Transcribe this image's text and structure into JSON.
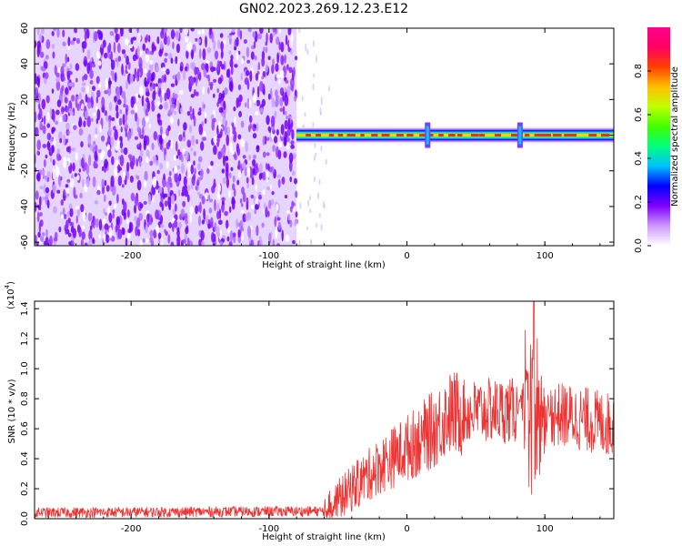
{
  "title": "GN02.2023.269.12.23.E12",
  "chart_data": [
    {
      "type": "heatmap",
      "xlabel": "Height of straight line (km)",
      "ylabel": "Frequency (Hz)",
      "xlim": [
        -270,
        150
      ],
      "ylim": [
        -62,
        60
      ],
      "xticks": [
        -200,
        -100,
        0,
        100
      ],
      "yticks": [
        60,
        40,
        20,
        0,
        -20,
        -40,
        -60
      ],
      "colorbar": {
        "label": "Normalized spectral amplitude",
        "range": [
          0,
          1
        ],
        "ticks": [
          "0.0",
          "0.2",
          "0.4",
          "0.6",
          "0.8"
        ],
        "colors": [
          "#ffffff",
          "#cc99ff",
          "#8000ff",
          "#0000ff",
          "#00c0ff",
          "#00ff80",
          "#40ff00",
          "#c0ff00",
          "#ffc000",
          "#ff4000",
          "#ff0060",
          "#ff0090"
        ]
      },
      "noise_region_x": [
        -270,
        -80
      ],
      "band_region_x": [
        -80,
        150
      ],
      "band_center_hz": 0,
      "spikes_x": [
        15,
        82
      ]
    },
    {
      "type": "line",
      "xlabel": "Height of straight line (km)",
      "ylabel": "SNR (10 * v/v)",
      "yscale_label": "(x10",
      "yscale_exp": "4",
      "yscale_close": ")",
      "xlim": [
        -270,
        150
      ],
      "ylim": [
        0,
        1.45
      ],
      "xticks": [
        -200,
        -100,
        0,
        100
      ],
      "yticks": [
        "0.0",
        "0.2",
        "0.4",
        "0.6",
        "0.8",
        "1.0",
        "1.2",
        "1.4"
      ],
      "color": "#ee3333",
      "series_envelope": {
        "x": [
          -270,
          -60,
          -40,
          -20,
          0,
          20,
          30,
          60,
          80,
          90,
          95,
          105,
          120,
          150
        ],
        "y": [
          0.04,
          0.05,
          0.2,
          0.35,
          0.47,
          0.6,
          0.7,
          0.72,
          0.72,
          0.65,
          0.65,
          0.7,
          0.68,
          0.62
        ]
      },
      "spike_x": 92,
      "spike_y_max": 1.45
    }
  ]
}
